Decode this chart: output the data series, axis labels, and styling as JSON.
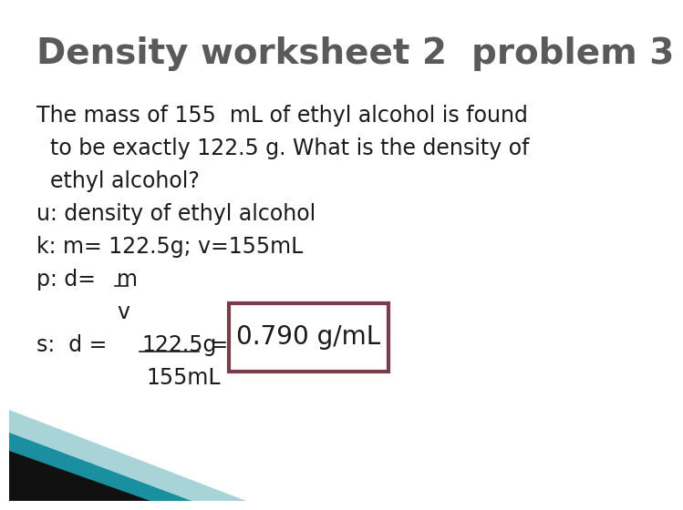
{
  "title": "Density worksheet 2  problem 3",
  "title_color": "#5a5a5a",
  "title_fontsize": 28,
  "bg_color": "#ffffff",
  "body_fontsize": 17,
  "body_color": "#1a1a1a",
  "line1": "The mass of 155  mL of ethyl alcohol is found",
  "line2": "  to be exactly 122.5 g. What is the density of",
  "line3": "  ethyl alcohol?",
  "line4": "u: density of ethyl alcohol",
  "line5": "k: m= 122.5g; v=155mL",
  "line6_pre": "p: d= ",
  "line6_m": "m",
  "line7_v": "v",
  "line8_pre": "s:  d = ",
  "line8_num": "122.5g",
  "line8_eq": " =",
  "answer": "0.790 g/mL",
  "answer_box_color": "#7a3b4b",
  "answer_box_fill": "#ffffff",
  "answer_fontsize": 20,
  "denom": "155mL",
  "tri_dark": "#111111",
  "tri_teal": "#1a8fa0",
  "tri_light": "#a8d4d8"
}
